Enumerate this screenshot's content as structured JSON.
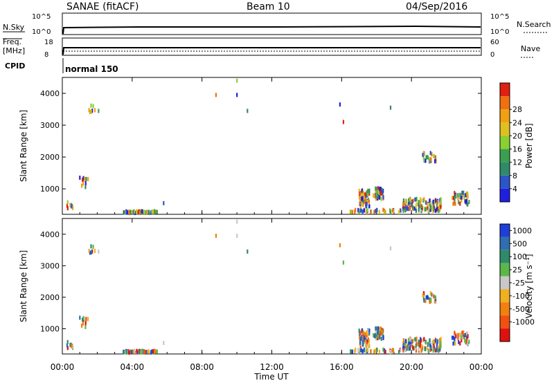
{
  "header": {
    "title": "SANAE (fitACF)",
    "beam": "Beam 10",
    "date": "04/Sep/2016"
  },
  "top_panels": {
    "nsky_label": "N.Sky",
    "nsky_ticks": [
      "10^5",
      "10^0"
    ],
    "nsearch_label": "N.Search",
    "freq_label_1": "Freq.",
    "freq_label_2": "[MHz]",
    "freq_ticks": [
      "18",
      "8"
    ],
    "nave_label": "Nave",
    "nave_ticks": [
      "60",
      "0"
    ],
    "cpid_label": "CPID",
    "cpid_value": "normal 150"
  },
  "chart_data": [
    {
      "type": "heatmap",
      "name": "power",
      "ylabel": "Slant Range [km]",
      "xlabel": "Time UT",
      "ylim": [
        200,
        4500
      ],
      "yticks": [
        "1000",
        "2000",
        "3000",
        "4000"
      ],
      "xticks": [
        "00:00",
        "04:00",
        "08:00",
        "12:00",
        "16:00",
        "20:00",
        "00:00"
      ],
      "colorbar": {
        "label": "Power [dB]",
        "ticks": [
          "4",
          "8",
          "12",
          "16",
          "20",
          "24",
          "28"
        ],
        "colors": [
          "#1f1fe0",
          "#2b55c8",
          "#2f8a6a",
          "#3aa050",
          "#8ad030",
          "#e0c020",
          "#f0a010",
          "#f07010",
          "#e02010"
        ]
      },
      "clusters": [
        {
          "t": 0.5,
          "r": 480,
          "dt": 0.6,
          "dr": 200,
          "n": 10
        },
        {
          "t": 1.8,
          "r": 3500,
          "dt": 0.6,
          "dr": 300,
          "n": 8
        },
        {
          "t": 1.3,
          "r": 1200,
          "dt": 0.4,
          "dr": 300,
          "n": 10
        },
        {
          "t": 4.5,
          "r": 270,
          "dt": 2.0,
          "dr": 60,
          "n": 70
        },
        {
          "t": 17.3,
          "r": 700,
          "dt": 0.6,
          "dr": 500,
          "n": 55
        },
        {
          "t": 18.1,
          "r": 850,
          "dt": 0.6,
          "dr": 350,
          "n": 50
        },
        {
          "t": 20.6,
          "r": 500,
          "dt": 2.2,
          "dr": 400,
          "n": 120
        },
        {
          "t": 21.0,
          "r": 2000,
          "dt": 0.8,
          "dr": 300,
          "n": 25
        },
        {
          "t": 22.8,
          "r": 700,
          "dt": 1.0,
          "dr": 400,
          "n": 40
        },
        {
          "t": 18.0,
          "r": 300,
          "dt": 3.0,
          "dr": 80,
          "n": 40
        }
      ],
      "singles": [
        {
          "t": 8.8,
          "r": 3950
        },
        {
          "t": 10.0,
          "r": 4400
        },
        {
          "t": 10.0,
          "r": 3950
        },
        {
          "t": 10.6,
          "r": 3450
        },
        {
          "t": 15.9,
          "r": 3650
        },
        {
          "t": 16.1,
          "r": 3100
        },
        {
          "t": 18.8,
          "r": 3550
        },
        {
          "t": 1.0,
          "r": 1350
        },
        {
          "t": 5.8,
          "r": 550
        }
      ]
    },
    {
      "type": "heatmap",
      "name": "velocity",
      "ylabel": "Slant Range [km]",
      "xlabel": "Time UT",
      "ylim": [
        200,
        4500
      ],
      "yticks": [
        "1000",
        "2000",
        "3000",
        "4000"
      ],
      "xticks": [
        "00:00",
        "04:00",
        "08:00",
        "12:00",
        "16:00",
        "20:00",
        "00:00"
      ],
      "colorbar": {
        "label": "Velocity [m s⁻¹]",
        "ticks": [
          "1000",
          "500",
          "100",
          "25",
          "-25",
          "-100",
          "-500",
          "-1000"
        ],
        "colors": [
          "#1f3fd8",
          "#2f6fb0",
          "#2f8a6a",
          "#5ab84a",
          "#c8c8c8",
          "#f0b020",
          "#f08010",
          "#f05010",
          "#e01010"
        ]
      }
    }
  ]
}
